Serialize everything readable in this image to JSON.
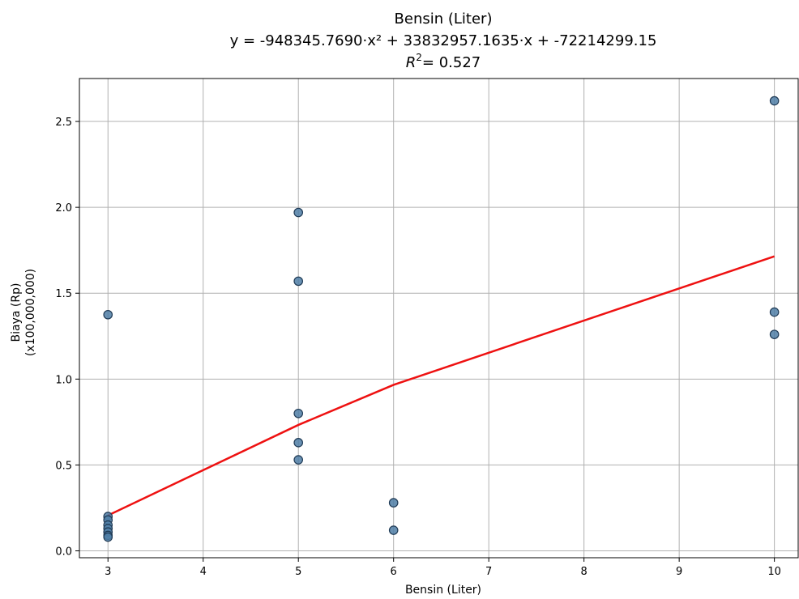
{
  "chart_data": {
    "type": "scatter",
    "title": "Bensin (Liter)",
    "subtitle": "y = -948345.7690·x² + 33832957.1635·x + -72214299.15",
    "r2_label": "= 0.527",
    "xlabel": "Bensin (Liter)",
    "ylabel": [
      "Biaya (Rp)",
      "(x100,000,000)"
    ],
    "xlim": [
      2.7,
      10.25
    ],
    "ylim": [
      -0.04,
      2.75
    ],
    "xticks": [
      3,
      4,
      5,
      6,
      7,
      8,
      9,
      10
    ],
    "yticks": [
      0.0,
      0.5,
      1.0,
      1.5,
      2.0,
      2.5
    ],
    "xtick_labels": [
      "3",
      "4",
      "5",
      "6",
      "7",
      "8",
      "9",
      "10"
    ],
    "ytick_labels": [
      "0.0",
      "0.5",
      "1.0",
      "1.5",
      "2.0",
      "2.5"
    ],
    "grid": true,
    "colors": {
      "points": "#4f7ea6",
      "point_edge": "#1f3a55",
      "fit": "#ee1111",
      "grid": "#b0b0b0"
    },
    "points": [
      {
        "x": 3,
        "y": 1.375
      },
      {
        "x": 3,
        "y": 0.2
      },
      {
        "x": 3,
        "y": 0.18
      },
      {
        "x": 3,
        "y": 0.15
      },
      {
        "x": 3,
        "y": 0.13
      },
      {
        "x": 3,
        "y": 0.11
      },
      {
        "x": 3,
        "y": 0.09
      },
      {
        "x": 3,
        "y": 0.08
      },
      {
        "x": 5,
        "y": 1.97
      },
      {
        "x": 5,
        "y": 1.57
      },
      {
        "x": 5,
        "y": 0.8
      },
      {
        "x": 5,
        "y": 0.63
      },
      {
        "x": 5,
        "y": 0.53
      },
      {
        "x": 6,
        "y": 0.28
      },
      {
        "x": 6,
        "y": 0.12
      },
      {
        "x": 10,
        "y": 2.62
      },
      {
        "x": 10,
        "y": 1.39
      },
      {
        "x": 10,
        "y": 1.26
      }
    ],
    "fit_line": {
      "x": [
        3,
        5,
        6,
        10
      ],
      "y": [
        0.2065,
        0.7332,
        0.9665,
        1.7149
      ]
    }
  }
}
